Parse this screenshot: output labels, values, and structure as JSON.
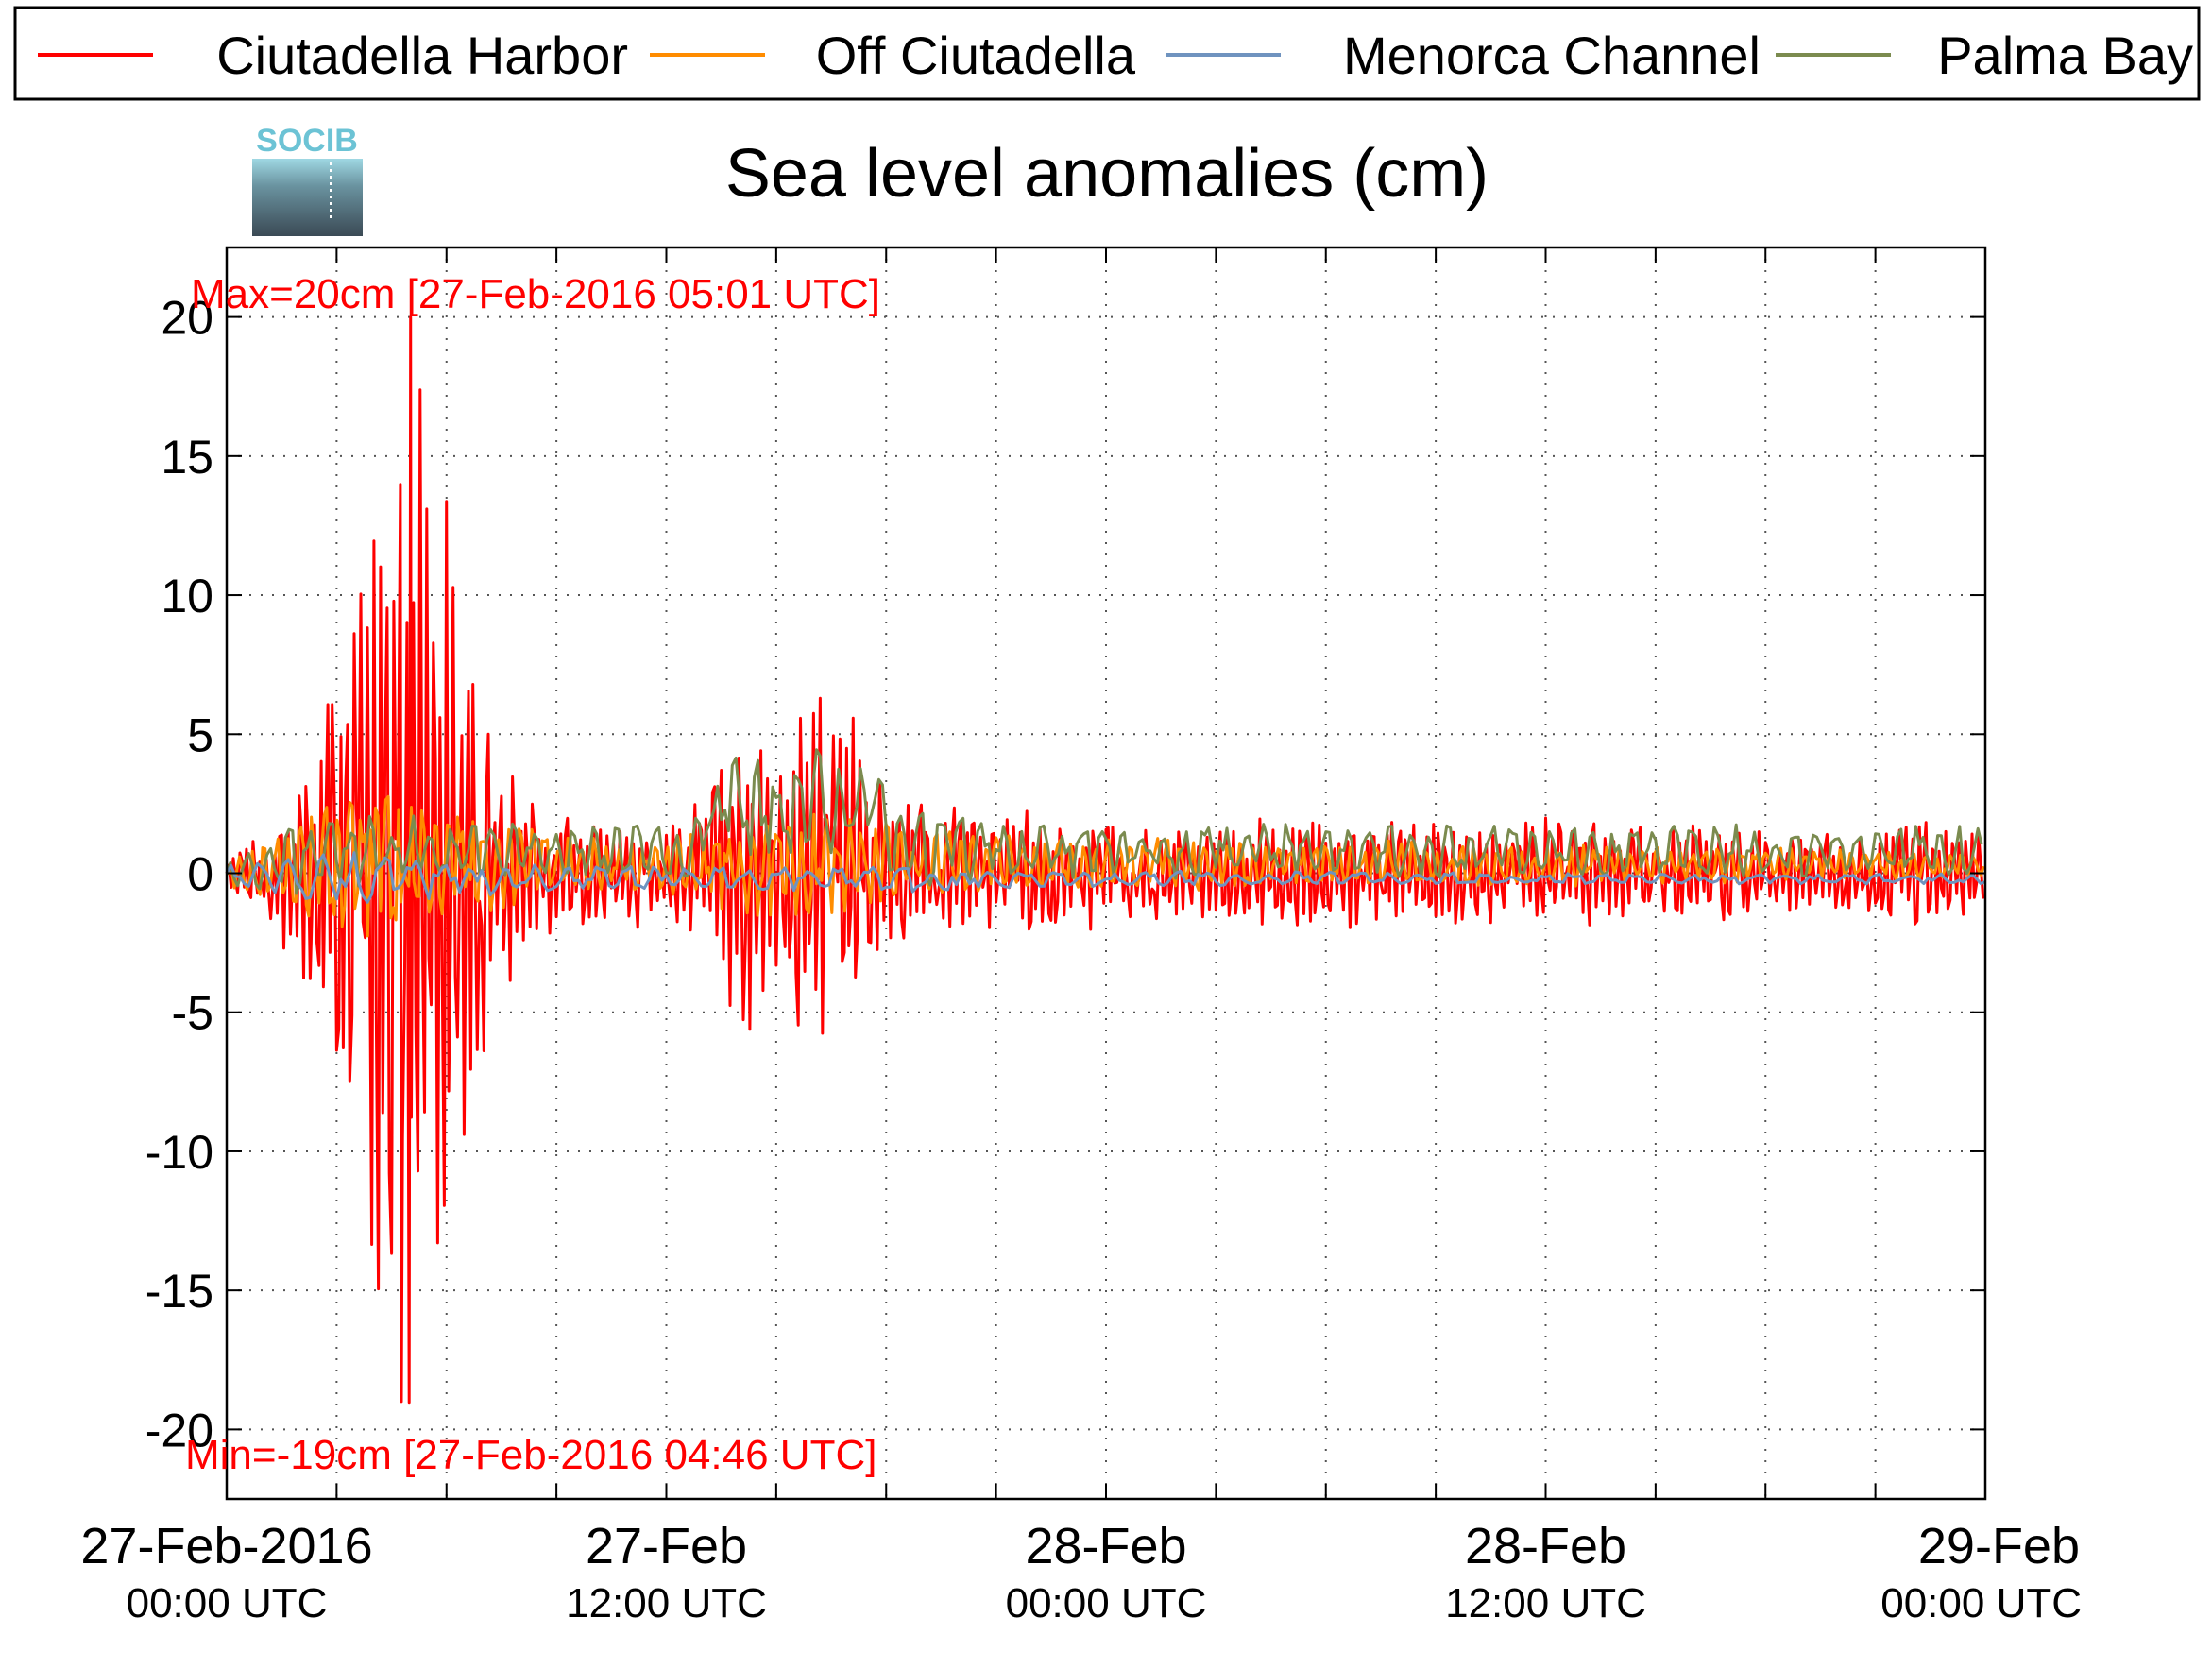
{
  "chart_data": {
    "type": "line",
    "title": "Sea level anomalies (cm)",
    "logo_text": "SOCIB",
    "xlabel": "",
    "ylabel": "",
    "ylim": [
      -22.5,
      22.5
    ],
    "y_ticks": [
      20,
      15,
      10,
      5,
      0,
      -5,
      -10,
      -15,
      -20
    ],
    "xlim_hours": [
      0,
      48
    ],
    "x_ticks": [
      {
        "hours": 0,
        "date": "27-Feb-2016",
        "time": "00:00 UTC"
      },
      {
        "hours": 12,
        "date": "27-Feb",
        "time": "12:00 UTC"
      },
      {
        "hours": 24,
        "date": "28-Feb",
        "time": "00:00 UTC"
      },
      {
        "hours": 36,
        "date": "28-Feb",
        "time": "12:00 UTC"
      },
      {
        "hours": 48,
        "date": "29-Feb",
        "time": "00:00 UTC"
      }
    ],
    "grid": true,
    "legend_position": "top",
    "annotations": {
      "max": "Max=20cm [27-Feb-2016 05:01 UTC]",
      "min": "Min=-19cm [27-Feb-2016 04:46 UTC]"
    },
    "series": [
      {
        "name": "Ciutadella Harbor",
        "color": "#ff0000",
        "envelope": [
          [
            0,
            1
          ],
          [
            1,
            1.5
          ],
          [
            2,
            4
          ],
          [
            3,
            10
          ],
          [
            4,
            16
          ],
          [
            5,
            20
          ],
          [
            6,
            14
          ],
          [
            7,
            8
          ],
          [
            8,
            3
          ],
          [
            9,
            2.5
          ],
          [
            10,
            2
          ],
          [
            12,
            2
          ],
          [
            13,
            3
          ],
          [
            14,
            6
          ],
          [
            15,
            7
          ],
          [
            16,
            8
          ],
          [
            17,
            6
          ],
          [
            18,
            3
          ],
          [
            20,
            2.5
          ],
          [
            24,
            2
          ],
          [
            30,
            2
          ],
          [
            36,
            2
          ],
          [
            40,
            1.8
          ],
          [
            44,
            1.5
          ],
          [
            46,
            2
          ],
          [
            48,
            1.5
          ]
        ],
        "peaks": [
          {
            "x": 5.02,
            "y": 20
          },
          {
            "x": 4.77,
            "y": -19
          }
        ]
      },
      {
        "name": "Off Ciutadella",
        "color": "#ff8c00",
        "envelope": [
          [
            0,
            0.5
          ],
          [
            2,
            1.5
          ],
          [
            3,
            3
          ],
          [
            5,
            3
          ],
          [
            7,
            2
          ],
          [
            9,
            1
          ],
          [
            12,
            1
          ],
          [
            14,
            2
          ],
          [
            16,
            2
          ],
          [
            18,
            1.5
          ],
          [
            24,
            1
          ],
          [
            36,
            0.8
          ],
          [
            48,
            0.5
          ]
        ]
      },
      {
        "name": "Menorca Channel",
        "color": "#6f93bf",
        "envelope": [
          [
            0,
            0.3
          ],
          [
            3,
            1
          ],
          [
            6,
            0.7
          ],
          [
            12,
            0.4
          ],
          [
            18,
            0.5
          ],
          [
            24,
            0.3
          ],
          [
            36,
            0.2
          ],
          [
            48,
            0.2
          ]
        ]
      },
      {
        "name": "Palma Bay",
        "color": "#7b8b4f",
        "envelope": [
          [
            0,
            0.5
          ],
          [
            2,
            1.5
          ],
          [
            4,
            1.5
          ],
          [
            8,
            1
          ],
          [
            12,
            1
          ],
          [
            14,
            2
          ],
          [
            16,
            2
          ],
          [
            18,
            1.5
          ],
          [
            24,
            1
          ],
          [
            36,
            1
          ],
          [
            44,
            1
          ],
          [
            48,
            1
          ]
        ]
      }
    ]
  }
}
